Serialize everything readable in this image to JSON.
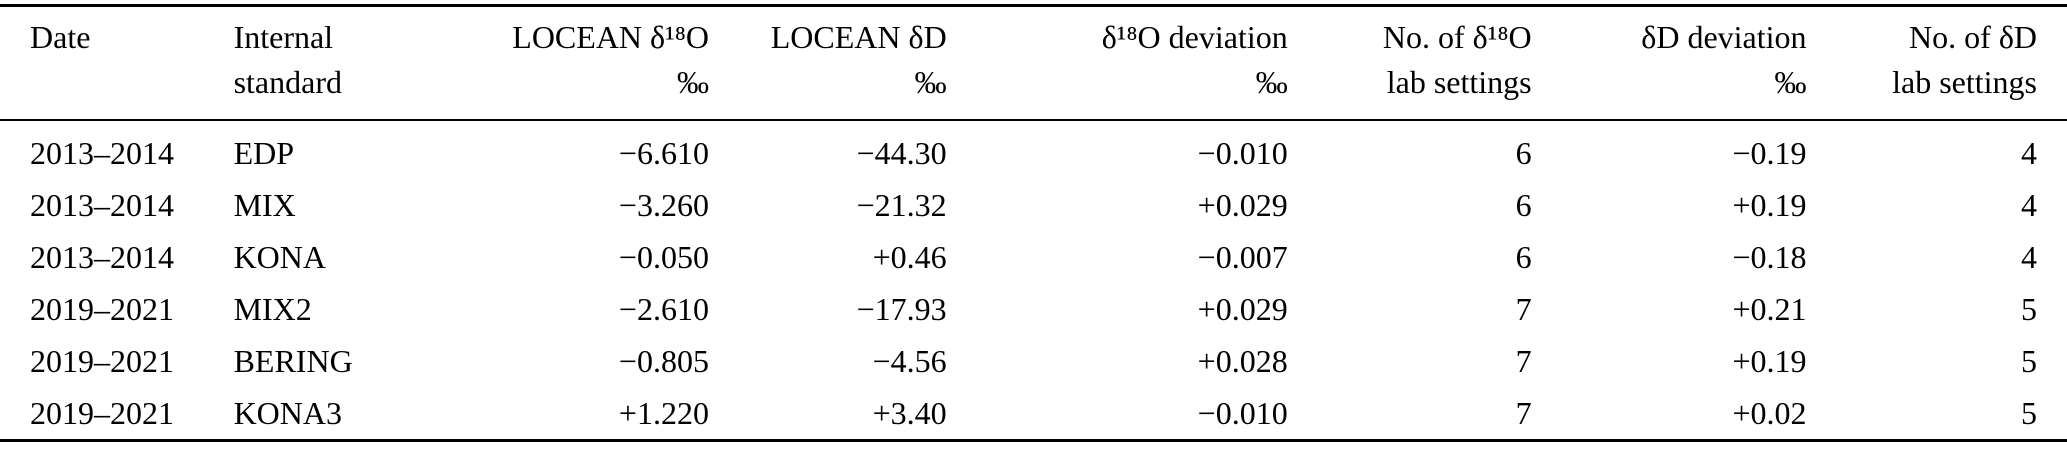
{
  "table": {
    "colors": {
      "text": "#000000",
      "background": "#ffffff",
      "rule": "#000000"
    },
    "columns": [
      {
        "id": "date",
        "line1": "Date",
        "line2": "",
        "align": "left"
      },
      {
        "id": "internal-standard",
        "line1": "Internal",
        "line2": "standard",
        "align": "left"
      },
      {
        "id": "locean-d18o",
        "line1": "LOCEAN δ¹⁸O",
        "line2": "‰",
        "align": "right"
      },
      {
        "id": "locean-dd",
        "line1": "LOCEAN δD",
        "line2": "‰",
        "align": "right"
      },
      {
        "id": "d18o-deviation",
        "line1": "δ¹⁸O deviation",
        "line2": "‰",
        "align": "right"
      },
      {
        "id": "n-d18o-lab-settings",
        "line1": "No. of δ¹⁸O",
        "line2": "lab settings",
        "align": "right"
      },
      {
        "id": "dd-deviation",
        "line1": "δD deviation",
        "line2": "‰",
        "align": "right"
      },
      {
        "id": "n-dd-lab-settings",
        "line1": "No. of δD",
        "line2": "lab settings",
        "align": "right"
      }
    ],
    "rows": [
      [
        "2013–2014",
        "EDP",
        "−6.610",
        "−44.30",
        "−0.010",
        "6",
        "−0.19",
        "4"
      ],
      [
        "2013–2014",
        "MIX",
        "−3.260",
        "−21.32",
        "+0.029",
        "6",
        "+0.19",
        "4"
      ],
      [
        "2013–2014",
        "KONA",
        "−0.050",
        "+0.46",
        "−0.007",
        "6",
        "−0.18",
        "4"
      ],
      [
        "2019–2021",
        "MIX2",
        "−2.610",
        "−17.93",
        "+0.029",
        "7",
        "+0.21",
        "5"
      ],
      [
        "2019–2021",
        "BERING",
        "−0.805",
        "−4.56",
        "+0.028",
        "7",
        "+0.19",
        "5"
      ],
      [
        "2019–2021",
        "KONA3",
        "+1.220",
        "+3.40",
        "−0.010",
        "7",
        "+0.02",
        "5"
      ]
    ]
  }
}
